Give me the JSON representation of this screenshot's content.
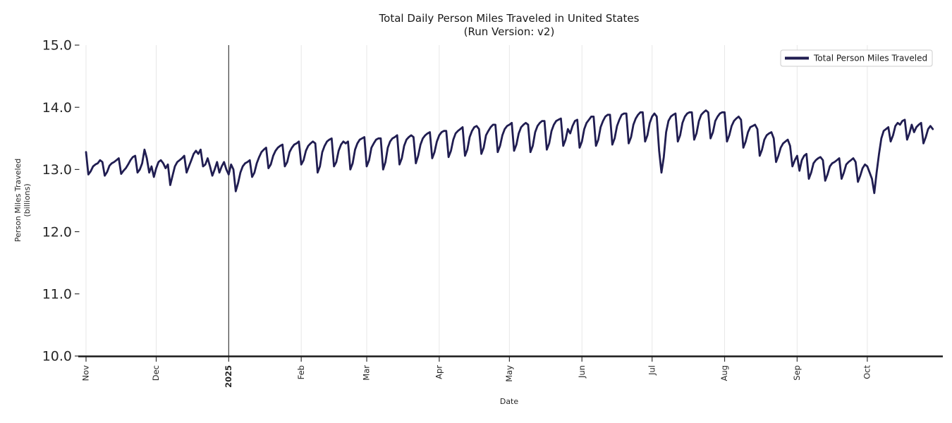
{
  "figure": {
    "background": "#ffffff"
  },
  "chart_data": {
    "type": "line",
    "title": "Total Daily Person Miles Traveled in United States",
    "subtitle": "(Run Version: v2)",
    "xlabel": "Date",
    "ylabel": "Person Miles Traveled (billions)",
    "ylabel_lines": [
      "Person Miles Traveled",
      "(billions)"
    ],
    "ylim": [
      10.0,
      15.0
    ],
    "y_ticks": [
      {
        "value": 10.0,
        "label": "10.0"
      },
      {
        "value": 11.0,
        "label": "11.0"
      },
      {
        "value": 12.0,
        "label": "12.0"
      },
      {
        "value": 13.0,
        "label": "13.0"
      },
      {
        "value": 14.0,
        "label": "14.0"
      },
      {
        "value": 15.0,
        "label": "15.0"
      }
    ],
    "x_ticks": [
      {
        "label": "Nov",
        "day": 0,
        "bold": false
      },
      {
        "label": "Dec",
        "day": 30,
        "bold": false
      },
      {
        "label": "2025",
        "day": 61,
        "bold": true
      },
      {
        "label": "Feb",
        "day": 92,
        "bold": false
      },
      {
        "label": "Mar",
        "day": 120,
        "bold": false
      },
      {
        "label": "Apr",
        "day": 151,
        "bold": false
      },
      {
        "label": "May",
        "day": 181,
        "bold": false
      },
      {
        "label": "Jun",
        "day": 212,
        "bold": false
      },
      {
        "label": "Jul",
        "day": 242,
        "bold": false
      },
      {
        "label": "Aug",
        "day": 273,
        "bold": false
      },
      {
        "label": "Sep",
        "day": 304,
        "bold": false
      },
      {
        "label": "Oct",
        "day": 334,
        "bold": false
      }
    ],
    "grid": {
      "vertical": true,
      "horizontal": false,
      "color": "#e7e7e7"
    },
    "annotations": {
      "new_year_vline": {
        "day": 61,
        "color": "#3c3c3c"
      }
    },
    "legend": {
      "position": "upper right",
      "entries": [
        {
          "label": "Total Person Miles Traveled",
          "color": "#201d51"
        }
      ]
    },
    "axis_colors": {
      "spine": "#1a1a1a",
      "tick": "#333333",
      "tick_text": "#262626"
    },
    "series": [
      {
        "name": "Total Person Miles Traveled",
        "color": "#201d51",
        "start_date": "2024-11-01",
        "frequency": "daily",
        "values": [
          13.28,
          12.92,
          12.97,
          13.05,
          13.08,
          13.1,
          13.15,
          13.12,
          12.9,
          12.96,
          13.06,
          13.1,
          13.12,
          13.15,
          13.18,
          12.93,
          12.98,
          13.02,
          13.08,
          13.15,
          13.2,
          13.22,
          12.95,
          13.0,
          13.1,
          13.32,
          13.18,
          12.95,
          13.05,
          12.88,
          13.02,
          13.12,
          13.15,
          13.1,
          13.02,
          13.08,
          12.75,
          12.9,
          13.05,
          13.12,
          13.15,
          13.18,
          13.22,
          12.95,
          13.05,
          13.15,
          13.25,
          13.3,
          13.25,
          13.32,
          13.05,
          13.08,
          13.18,
          13.05,
          12.9,
          13.0,
          13.12,
          12.95,
          13.05,
          13.12,
          13.0,
          12.92,
          13.08,
          13.0,
          12.65,
          12.78,
          12.95,
          13.05,
          13.1,
          13.12,
          13.15,
          12.88,
          12.95,
          13.1,
          13.2,
          13.28,
          13.32,
          13.35,
          13.02,
          13.08,
          13.22,
          13.3,
          13.35,
          13.38,
          13.4,
          13.05,
          13.12,
          13.28,
          13.35,
          13.4,
          13.42,
          13.45,
          13.08,
          13.15,
          13.3,
          13.38,
          13.42,
          13.45,
          13.42,
          12.95,
          13.05,
          13.28,
          13.38,
          13.45,
          13.48,
          13.5,
          13.05,
          13.12,
          13.3,
          13.4,
          13.45,
          13.42,
          13.45,
          13.0,
          13.1,
          13.32,
          13.42,
          13.48,
          13.5,
          13.52,
          13.05,
          13.15,
          13.35,
          13.42,
          13.48,
          13.5,
          13.5,
          13.0,
          13.12,
          13.35,
          13.45,
          13.5,
          13.52,
          13.55,
          13.08,
          13.18,
          13.38,
          13.48,
          13.52,
          13.55,
          13.52,
          13.1,
          13.22,
          13.4,
          13.5,
          13.55,
          13.58,
          13.6,
          13.18,
          13.28,
          13.45,
          13.55,
          13.6,
          13.62,
          13.62,
          13.2,
          13.3,
          13.48,
          13.58,
          13.62,
          13.65,
          13.68,
          13.22,
          13.32,
          13.52,
          13.62,
          13.68,
          13.7,
          13.65,
          13.25,
          13.35,
          13.55,
          13.62,
          13.68,
          13.72,
          13.72,
          13.28,
          13.38,
          13.55,
          13.65,
          13.7,
          13.72,
          13.75,
          13.3,
          13.4,
          13.58,
          13.68,
          13.72,
          13.75,
          13.72,
          13.28,
          13.38,
          13.6,
          13.7,
          13.75,
          13.78,
          13.78,
          13.32,
          13.42,
          13.62,
          13.72,
          13.78,
          13.8,
          13.82,
          13.38,
          13.48,
          13.65,
          13.58,
          13.7,
          13.78,
          13.8,
          13.35,
          13.45,
          13.65,
          13.75,
          13.8,
          13.85,
          13.85,
          13.38,
          13.48,
          13.68,
          13.78,
          13.85,
          13.88,
          13.88,
          13.4,
          13.5,
          13.7,
          13.8,
          13.88,
          13.9,
          13.9,
          13.42,
          13.52,
          13.72,
          13.82,
          13.88,
          13.92,
          13.92,
          13.45,
          13.55,
          13.75,
          13.85,
          13.9,
          13.85,
          13.3,
          12.95,
          13.2,
          13.6,
          13.78,
          13.85,
          13.88,
          13.9,
          13.45,
          13.55,
          13.75,
          13.85,
          13.9,
          13.92,
          13.92,
          13.48,
          13.58,
          13.78,
          13.88,
          13.92,
          13.95,
          13.92,
          13.5,
          13.6,
          13.78,
          13.85,
          13.9,
          13.92,
          13.92,
          13.45,
          13.55,
          13.7,
          13.78,
          13.82,
          13.85,
          13.8,
          13.35,
          13.45,
          13.6,
          13.68,
          13.7,
          13.72,
          13.65,
          13.22,
          13.32,
          13.48,
          13.55,
          13.58,
          13.6,
          13.5,
          13.12,
          13.22,
          13.35,
          13.42,
          13.45,
          13.48,
          13.38,
          13.05,
          13.15,
          13.22,
          12.98,
          13.15,
          13.22,
          13.25,
          12.85,
          12.95,
          13.1,
          13.15,
          13.18,
          13.2,
          13.15,
          12.82,
          12.92,
          13.05,
          13.1,
          13.12,
          13.15,
          13.18,
          12.85,
          12.95,
          13.08,
          13.12,
          13.15,
          13.18,
          13.12,
          12.8,
          12.9,
          13.02,
          13.08,
          13.05,
          12.95,
          12.85,
          12.62,
          12.95,
          13.25,
          13.5,
          13.62,
          13.65,
          13.68,
          13.45,
          13.55,
          13.7,
          13.75,
          13.72,
          13.78,
          13.8,
          13.48,
          13.58,
          13.72,
          13.6,
          13.68,
          13.72,
          13.75,
          13.42,
          13.52,
          13.65,
          13.7,
          13.65
        ]
      }
    ]
  }
}
